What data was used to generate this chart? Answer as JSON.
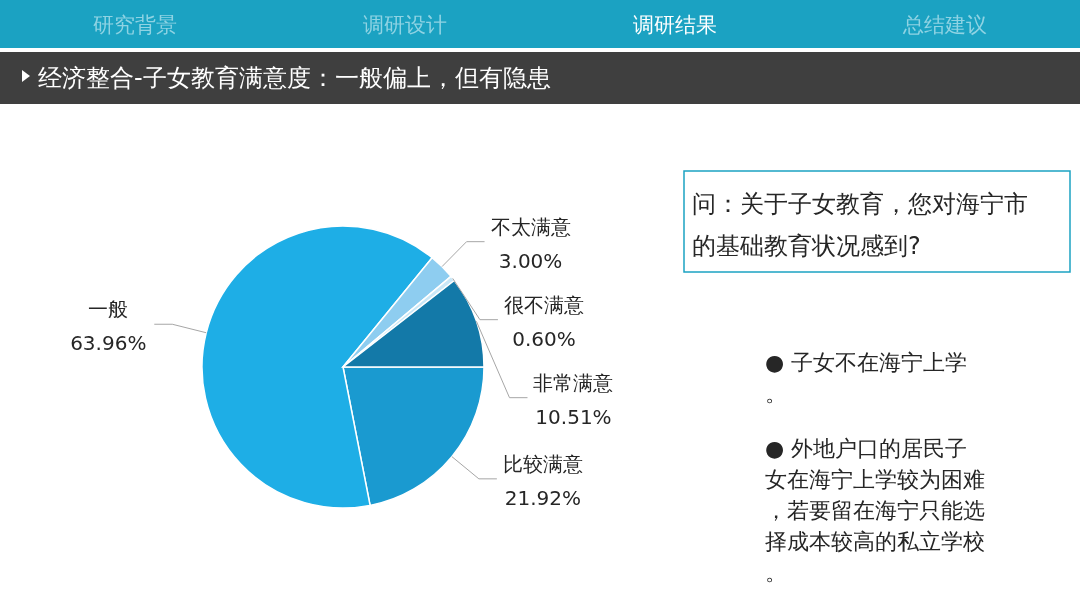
{
  "chart_data": {
    "type": "pie",
    "title": "经济整合-子女教育满意度：一般偏上，但有隐患",
    "categories": [
      "比较满意",
      "一般",
      "不太满意",
      "很不满意",
      "非常满意"
    ],
    "values": [
      21.92,
      63.96,
      3.0,
      0.6,
      10.51
    ],
    "value_labels": [
      "21.92%",
      "63.96%",
      "3.00%",
      "0.60%",
      "10.51%"
    ],
    "colors": [
      "#1a9ad0",
      "#1eaee6",
      "#8ecdf0",
      "#c9e7f7",
      "#1379a8"
    ],
    "legend": false,
    "annotations": [
      "研究背景",
      "调研设计",
      "调研结果",
      "总结建议",
      "问：关于子女教育，您对海宁市的基础教育状况感到?",
      "● 子女不在海宁上学。",
      "● 外地户口的居民子女在海宁上学较为困难，若要留在海宁只能选择成本较高的私立学校。"
    ]
  }
}
